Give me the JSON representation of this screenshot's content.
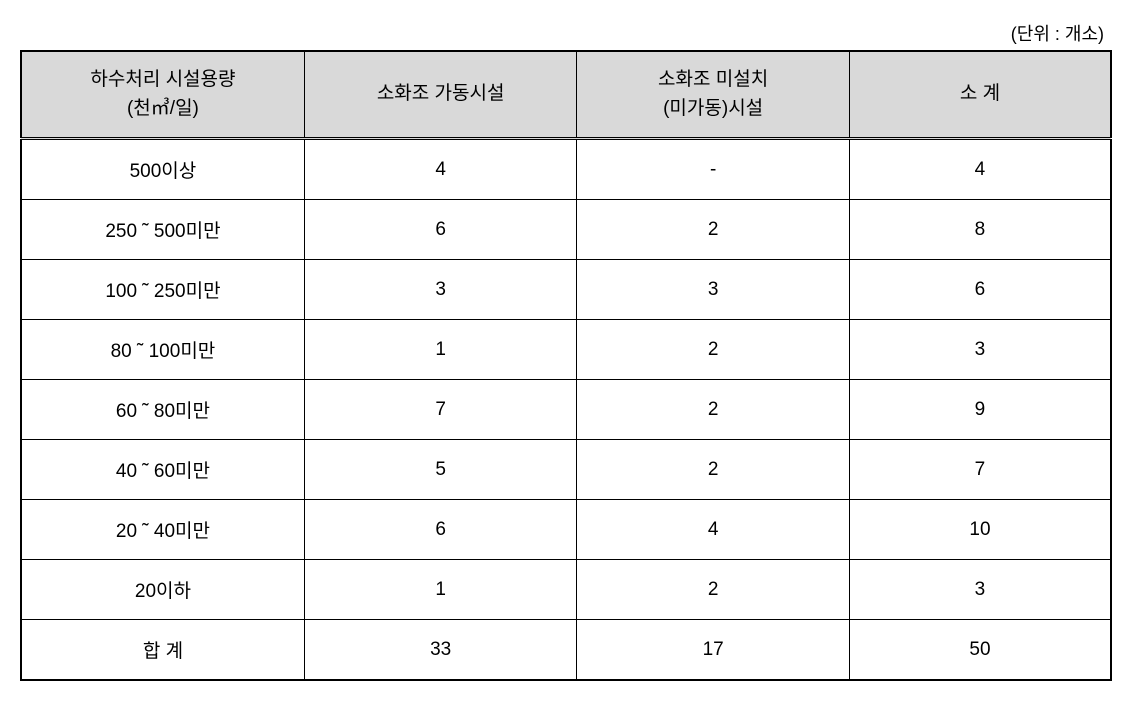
{
  "unit_label": "(단위 : 개소)",
  "table": {
    "type": "table",
    "background_color": "#ffffff",
    "header_background": "#d9d9d9",
    "border_color": "#000000",
    "font_size": 19,
    "columns": [
      {
        "key": "capacity",
        "header_line1": "하수처리 시설용량",
        "header_line2": "(천㎥/일)",
        "width_pct": 26
      },
      {
        "key": "operating",
        "header": "소화조 가동시설",
        "width_pct": 25
      },
      {
        "key": "nonoperating",
        "header_line1": "소화조 미설치",
        "header_line2": "(미가동)시설",
        "width_pct": 25
      },
      {
        "key": "subtotal",
        "header": "소   계",
        "width_pct": 24
      }
    ],
    "rows": [
      {
        "capacity": "500이상",
        "operating": "4",
        "nonoperating": "-",
        "subtotal": "4"
      },
      {
        "capacity": "250 ˜ 500미만",
        "operating": "6",
        "nonoperating": "2",
        "subtotal": "8"
      },
      {
        "capacity": "100 ˜ 250미만",
        "operating": "3",
        "nonoperating": "3",
        "subtotal": "6"
      },
      {
        "capacity": "80 ˜ 100미만",
        "operating": "1",
        "nonoperating": "2",
        "subtotal": "3"
      },
      {
        "capacity": "60 ˜ 80미만",
        "operating": "7",
        "nonoperating": "2",
        "subtotal": "9"
      },
      {
        "capacity": "40 ˜ 60미만",
        "operating": "5",
        "nonoperating": "2",
        "subtotal": "7"
      },
      {
        "capacity": "20 ˜ 40미만",
        "operating": "6",
        "nonoperating": "4",
        "subtotal": "10"
      },
      {
        "capacity": "20이하",
        "operating": "1",
        "nonoperating": "2",
        "subtotal": "3"
      },
      {
        "capacity": "합 계",
        "operating": "33",
        "nonoperating": "17",
        "subtotal": "50"
      }
    ]
  }
}
